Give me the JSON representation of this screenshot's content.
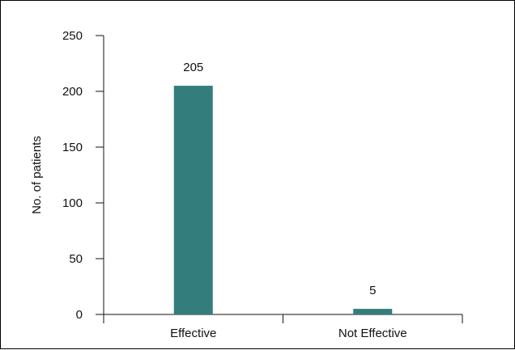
{
  "chart_data": {
    "type": "bar",
    "title": "",
    "xlabel": "",
    "ylabel": "No. of patients",
    "categories": [
      "Effective",
      "Not Effective"
    ],
    "values": [
      205,
      5
    ],
    "data_labels": [
      "205",
      "5"
    ],
    "ylim": [
      0,
      250
    ],
    "yticks": [
      0,
      50,
      100,
      150,
      200,
      250
    ],
    "grid": false,
    "legend": "none",
    "bar_color": "#337d7d"
  }
}
